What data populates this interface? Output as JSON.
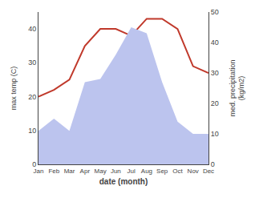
{
  "chart_data": {
    "type": "line",
    "categories": [
      "Jan",
      "Feb",
      "Mar",
      "Apr",
      "May",
      "Jun",
      "Jul",
      "Aug",
      "Sep",
      "Oct",
      "Nov",
      "Dec"
    ],
    "xlabel": "date (month)",
    "ylabel": "max temp (C)",
    "y2label": "med. precipitation\n(kg/m2)",
    "series": [
      {
        "type": "area",
        "axis": "y2",
        "color": "#bcc4ee",
        "values": [
          11,
          15,
          11,
          27,
          28,
          36,
          45,
          43,
          27,
          14,
          10,
          10
        ]
      },
      {
        "type": "line",
        "color": "#c0392b",
        "values": [
          20,
          22,
          25,
          35,
          40,
          40,
          38,
          43,
          43,
          40,
          29,
          27
        ]
      }
    ],
    "ylim": [
      0,
      45
    ],
    "yticks": [
      0,
      10,
      20,
      30,
      40
    ],
    "y2lim": [
      0,
      50
    ],
    "y2ticks": [
      0,
      10,
      20,
      30,
      40,
      50
    ],
    "grid": false
  }
}
